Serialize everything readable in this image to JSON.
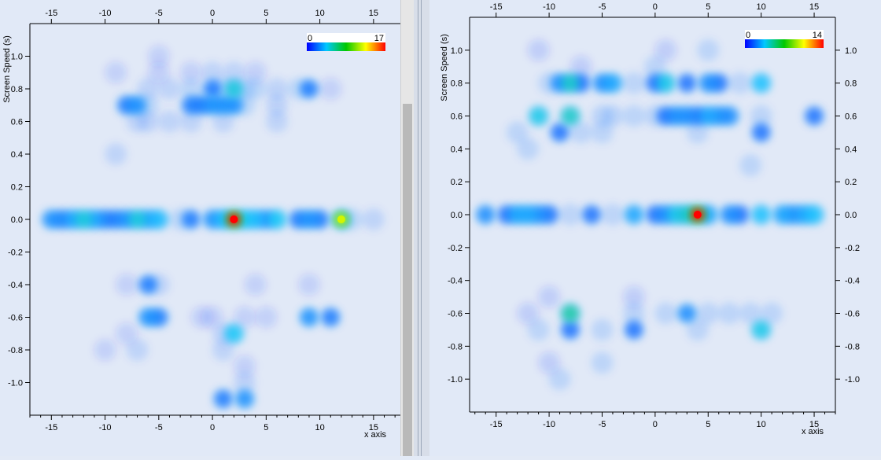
{
  "chart_data": [
    {
      "type": "heatmap",
      "xlabel": "x axis",
      "ylabel": "Screen Speed (s)",
      "xlim": [
        -17,
        17.5
      ],
      "ylim": [
        -1.2,
        1.2
      ],
      "xticks": [
        -15,
        -10,
        -5,
        0,
        5,
        10,
        15
      ],
      "yticks": [
        1.0,
        0.8,
        0.6,
        0.4,
        0.2,
        0.0,
        -0.2,
        -0.4,
        -0.6,
        -0.8,
        -1.0
      ],
      "colorbar": {
        "min": 0,
        "max": 17,
        "min_label": "0",
        "max_label": "17"
      },
      "points": [
        {
          "x": -15,
          "y": 0,
          "v": 5
        },
        {
          "x": -14,
          "y": 0,
          "v": 4
        },
        {
          "x": -13,
          "y": 0,
          "v": 6
        },
        {
          "x": -12,
          "y": 0,
          "v": 9
        },
        {
          "x": -11,
          "y": 0,
          "v": 6
        },
        {
          "x": -10,
          "y": 0,
          "v": 4
        },
        {
          "x": -9,
          "y": 0,
          "v": 4
        },
        {
          "x": -8,
          "y": 0,
          "v": 5
        },
        {
          "x": -7,
          "y": 0,
          "v": 9
        },
        {
          "x": -6,
          "y": 0,
          "v": 6
        },
        {
          "x": -5,
          "y": 0,
          "v": 7
        },
        {
          "x": -3,
          "y": 0,
          "v": 3
        },
        {
          "x": -2,
          "y": 0,
          "v": 4
        },
        {
          "x": 0,
          "y": 0,
          "v": 5
        },
        {
          "x": 1,
          "y": 0,
          "v": 7
        },
        {
          "x": 2,
          "y": 0,
          "v": 17
        },
        {
          "x": 3,
          "y": 0,
          "v": 8
        },
        {
          "x": 4,
          "y": 0,
          "v": 7
        },
        {
          "x": 5,
          "y": 0,
          "v": 5
        },
        {
          "x": 6,
          "y": 0,
          "v": 8
        },
        {
          "x": 8,
          "y": 0,
          "v": 4
        },
        {
          "x": 9,
          "y": 0,
          "v": 5
        },
        {
          "x": 10,
          "y": 0,
          "v": 4
        },
        {
          "x": 12,
          "y": 0,
          "v": 12
        },
        {
          "x": 13,
          "y": 0,
          "v": 3
        },
        {
          "x": 15,
          "y": 0,
          "v": 2
        },
        {
          "x": -9,
          "y": 0.9,
          "v": 1
        },
        {
          "x": -5,
          "y": 1.0,
          "v": 1
        },
        {
          "x": -5,
          "y": 0.9,
          "v": 1
        },
        {
          "x": -2,
          "y": 0.9,
          "v": 1
        },
        {
          "x": 0,
          "y": 0.9,
          "v": 2
        },
        {
          "x": 2,
          "y": 0.9,
          "v": 2
        },
        {
          "x": 4,
          "y": 0.9,
          "v": 1
        },
        {
          "x": -6,
          "y": 0.8,
          "v": 2
        },
        {
          "x": -4,
          "y": 0.8,
          "v": 2
        },
        {
          "x": -2,
          "y": 0.8,
          "v": 3
        },
        {
          "x": 0,
          "y": 0.8,
          "v": 4
        },
        {
          "x": 1,
          "y": 0.8,
          "v": 3
        },
        {
          "x": 2,
          "y": 0.8,
          "v": 9
        },
        {
          "x": 3,
          "y": 0.8,
          "v": 3
        },
        {
          "x": 4,
          "y": 0.8,
          "v": 3
        },
        {
          "x": 6,
          "y": 0.8,
          "v": 2
        },
        {
          "x": 8,
          "y": 0.8,
          "v": 3
        },
        {
          "x": 9,
          "y": 0.8,
          "v": 4
        },
        {
          "x": 11,
          "y": 0.8,
          "v": 1
        },
        {
          "x": -8,
          "y": 0.7,
          "v": 4
        },
        {
          "x": -7,
          "y": 0.7,
          "v": 5
        },
        {
          "x": -6,
          "y": 0.7,
          "v": 3
        },
        {
          "x": -2,
          "y": 0.7,
          "v": 4
        },
        {
          "x": -1,
          "y": 0.7,
          "v": 4
        },
        {
          "x": 0,
          "y": 0.7,
          "v": 5
        },
        {
          "x": 1,
          "y": 0.7,
          "v": 5
        },
        {
          "x": 2,
          "y": 0.7,
          "v": 5
        },
        {
          "x": 3,
          "y": 0.7,
          "v": 3
        },
        {
          "x": 6,
          "y": 0.7,
          "v": 2
        },
        {
          "x": -7,
          "y": 0.6,
          "v": 2
        },
        {
          "x": -6,
          "y": 0.6,
          "v": 2
        },
        {
          "x": -4,
          "y": 0.6,
          "v": 2
        },
        {
          "x": -2,
          "y": 0.6,
          "v": 2
        },
        {
          "x": 1,
          "y": 0.6,
          "v": 2
        },
        {
          "x": 6,
          "y": 0.6,
          "v": 2
        },
        {
          "x": -9,
          "y": 0.4,
          "v": 2
        },
        {
          "x": -8,
          "y": -0.4,
          "v": 1
        },
        {
          "x": -6,
          "y": -0.4,
          "v": 4
        },
        {
          "x": -5,
          "y": -0.4,
          "v": 2
        },
        {
          "x": 4,
          "y": -0.4,
          "v": 1
        },
        {
          "x": 9,
          "y": -0.4,
          "v": 1
        },
        {
          "x": -6,
          "y": -0.6,
          "v": 5
        },
        {
          "x": -5,
          "y": -0.6,
          "v": 4
        },
        {
          "x": -1,
          "y": -0.6,
          "v": 1
        },
        {
          "x": 0,
          "y": -0.6,
          "v": 1
        },
        {
          "x": 3,
          "y": -0.6,
          "v": 1
        },
        {
          "x": 5,
          "y": -0.6,
          "v": 1
        },
        {
          "x": 9,
          "y": -0.6,
          "v": 5
        },
        {
          "x": 11,
          "y": -0.6,
          "v": 4
        },
        {
          "x": -8,
          "y": -0.7,
          "v": 1
        },
        {
          "x": 1,
          "y": -0.7,
          "v": 2
        },
        {
          "x": 2,
          "y": -0.7,
          "v": 8
        },
        {
          "x": -10,
          "y": -0.8,
          "v": 1
        },
        {
          "x": -7,
          "y": -0.8,
          "v": 2
        },
        {
          "x": 1,
          "y": -0.8,
          "v": 2
        },
        {
          "x": 3,
          "y": -0.9,
          "v": 1
        },
        {
          "x": 3,
          "y": -1.0,
          "v": 2
        },
        {
          "x": 1,
          "y": -1.1,
          "v": 4
        },
        {
          "x": 3,
          "y": -1.1,
          "v": 5
        }
      ]
    },
    {
      "type": "heatmap",
      "xlabel": "x axis",
      "ylabel": "Screen Speed (s)",
      "xlim": [
        -17.5,
        17
      ],
      "ylim": [
        -1.2,
        1.2
      ],
      "xticks": [
        -15,
        -10,
        -5,
        0,
        5,
        10,
        15
      ],
      "yticks": [
        1.0,
        0.8,
        0.6,
        0.4,
        0.2,
        0.0,
        -0.2,
        -0.4,
        -0.6,
        -0.8,
        -1.0
      ],
      "colorbar": {
        "min": 0,
        "max": 14,
        "min_label": "0",
        "max_label": "14"
      },
      "points": [
        {
          "x": -16,
          "y": 0,
          "v": 4
        },
        {
          "x": -14,
          "y": 0,
          "v": 3
        },
        {
          "x": -13,
          "y": 0,
          "v": 5
        },
        {
          "x": -12,
          "y": 0,
          "v": 5
        },
        {
          "x": -11,
          "y": 0,
          "v": 4
        },
        {
          "x": -10,
          "y": 0,
          "v": 3
        },
        {
          "x": -8,
          "y": 0,
          "v": 2
        },
        {
          "x": -6,
          "y": 0,
          "v": 3
        },
        {
          "x": -4,
          "y": 0,
          "v": 2
        },
        {
          "x": -2,
          "y": 0,
          "v": 5
        },
        {
          "x": 0,
          "y": 0,
          "v": 3
        },
        {
          "x": 1,
          "y": 0,
          "v": 4
        },
        {
          "x": 2,
          "y": 0,
          "v": 7
        },
        {
          "x": 3,
          "y": 0,
          "v": 8
        },
        {
          "x": 4,
          "y": 0,
          "v": 14
        },
        {
          "x": 5,
          "y": 0,
          "v": 5
        },
        {
          "x": 7,
          "y": 0,
          "v": 4
        },
        {
          "x": 8,
          "y": 0,
          "v": 3
        },
        {
          "x": 10,
          "y": 0,
          "v": 6
        },
        {
          "x": 12,
          "y": 0,
          "v": 5
        },
        {
          "x": 13,
          "y": 0,
          "v": 4
        },
        {
          "x": 14,
          "y": 0,
          "v": 5
        },
        {
          "x": 15,
          "y": 0,
          "v": 6
        },
        {
          "x": -11,
          "y": 1.0,
          "v": 1
        },
        {
          "x": 1,
          "y": 1.0,
          "v": 1
        },
        {
          "x": 5,
          "y": 1.0,
          "v": 2
        },
        {
          "x": -7,
          "y": 0.9,
          "v": 1
        },
        {
          "x": 0,
          "y": 0.9,
          "v": 2
        },
        {
          "x": -10,
          "y": 0.8,
          "v": 2
        },
        {
          "x": -9,
          "y": 0.8,
          "v": 4
        },
        {
          "x": -8,
          "y": 0.8,
          "v": 8
        },
        {
          "x": -7,
          "y": 0.8,
          "v": 3
        },
        {
          "x": -5,
          "y": 0.8,
          "v": 4
        },
        {
          "x": -4,
          "y": 0.8,
          "v": 5
        },
        {
          "x": -2,
          "y": 0.8,
          "v": 2
        },
        {
          "x": 0,
          "y": 0.8,
          "v": 3
        },
        {
          "x": 1,
          "y": 0.8,
          "v": 7
        },
        {
          "x": 3,
          "y": 0.8,
          "v": 3
        },
        {
          "x": 5,
          "y": 0.8,
          "v": 4
        },
        {
          "x": 6,
          "y": 0.8,
          "v": 3
        },
        {
          "x": 8,
          "y": 0.8,
          "v": 2
        },
        {
          "x": 10,
          "y": 0.8,
          "v": 6
        },
        {
          "x": -11,
          "y": 0.6,
          "v": 7
        },
        {
          "x": -8,
          "y": 0.6,
          "v": 8
        },
        {
          "x": -5,
          "y": 0.6,
          "v": 2
        },
        {
          "x": -4,
          "y": 0.6,
          "v": 2
        },
        {
          "x": -2,
          "y": 0.6,
          "v": 2
        },
        {
          "x": 0,
          "y": 0.6,
          "v": 2
        },
        {
          "x": 1,
          "y": 0.6,
          "v": 3
        },
        {
          "x": 2,
          "y": 0.6,
          "v": 4
        },
        {
          "x": 3,
          "y": 0.6,
          "v": 4
        },
        {
          "x": 4,
          "y": 0.6,
          "v": 3
        },
        {
          "x": 5,
          "y": 0.6,
          "v": 5
        },
        {
          "x": 6,
          "y": 0.6,
          "v": 4
        },
        {
          "x": 7,
          "y": 0.6,
          "v": 4
        },
        {
          "x": 10,
          "y": 0.6,
          "v": 2
        },
        {
          "x": 15,
          "y": 0.6,
          "v": 3
        },
        {
          "x": -13,
          "y": 0.5,
          "v": 2
        },
        {
          "x": -9,
          "y": 0.5,
          "v": 3
        },
        {
          "x": -7,
          "y": 0.5,
          "v": 2
        },
        {
          "x": -5,
          "y": 0.5,
          "v": 2
        },
        {
          "x": 4,
          "y": 0.5,
          "v": 2
        },
        {
          "x": 10,
          "y": 0.5,
          "v": 3
        },
        {
          "x": -12,
          "y": 0.4,
          "v": 2
        },
        {
          "x": 9,
          "y": 0.3,
          "v": 2
        },
        {
          "x": -10,
          "y": -0.5,
          "v": 1
        },
        {
          "x": -2,
          "y": -0.5,
          "v": 1
        },
        {
          "x": -12,
          "y": -0.6,
          "v": 1
        },
        {
          "x": -8,
          "y": -0.6,
          "v": 9
        },
        {
          "x": -2,
          "y": -0.6,
          "v": 2
        },
        {
          "x": 1,
          "y": -0.6,
          "v": 2
        },
        {
          "x": 3,
          "y": -0.6,
          "v": 4
        },
        {
          "x": 5,
          "y": -0.6,
          "v": 2
        },
        {
          "x": 7,
          "y": -0.6,
          "v": 2
        },
        {
          "x": 9,
          "y": -0.6,
          "v": 2
        },
        {
          "x": 11,
          "y": -0.6,
          "v": 2
        },
        {
          "x": -11,
          "y": -0.7,
          "v": 2
        },
        {
          "x": -8,
          "y": -0.7,
          "v": 3
        },
        {
          "x": -5,
          "y": -0.7,
          "v": 2
        },
        {
          "x": -2,
          "y": -0.7,
          "v": 3
        },
        {
          "x": 4,
          "y": -0.7,
          "v": 2
        },
        {
          "x": 10,
          "y": -0.7,
          "v": 7
        },
        {
          "x": -10,
          "y": -0.9,
          "v": 1
        },
        {
          "x": -5,
          "y": -0.9,
          "v": 2
        },
        {
          "x": -9,
          "y": -1.0,
          "v": 2
        }
      ]
    }
  ],
  "colors": {
    "background": "#e3eaf6",
    "axis": "#000000",
    "scale": [
      "#0000ff",
      "#00c8ff",
      "#00c800",
      "#ffff00",
      "#ff0000"
    ]
  }
}
